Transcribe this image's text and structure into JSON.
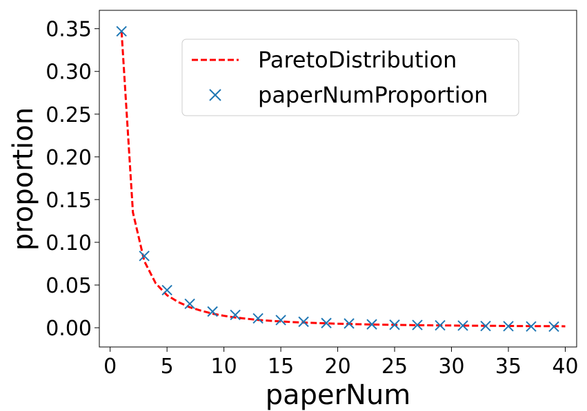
{
  "chart_data": {
    "type": "line",
    "title": "",
    "xlabel": "paperNum",
    "ylabel": "proportion",
    "xlim": [
      -0.95,
      41.0
    ],
    "ylim": [
      -0.0225,
      0.3715
    ],
    "xticks": [
      0,
      5,
      10,
      15,
      20,
      25,
      30,
      35,
      40
    ],
    "xtick_labels": [
      "0",
      "5",
      "10",
      "15",
      "20",
      "25",
      "30",
      "35",
      "40"
    ],
    "yticks": [
      0.0,
      0.05,
      0.1,
      0.15,
      0.2,
      0.25,
      0.3,
      0.35
    ],
    "ytick_labels": [
      "0.00",
      "0.05",
      "0.10",
      "0.15",
      "0.20",
      "0.25",
      "0.30",
      "0.35"
    ],
    "grid": false,
    "legend_position": "upper-right",
    "series": [
      {
        "name": "ParetoDistribution",
        "kind": "line",
        "style": "dashed",
        "color": "#ff0000",
        "x": [
          1,
          2,
          3,
          4,
          5,
          6,
          7,
          8,
          9,
          10,
          11,
          12,
          13,
          14,
          15,
          16,
          17,
          18,
          19,
          20,
          21,
          22,
          23,
          24,
          25,
          26,
          27,
          28,
          29,
          30,
          31,
          32,
          33,
          34,
          35,
          36,
          37,
          38,
          39,
          40
        ],
        "y": [
          0.347,
          0.135,
          0.078,
          0.052,
          0.038,
          0.03,
          0.024,
          0.02,
          0.0165,
          0.014,
          0.012,
          0.0105,
          0.0092,
          0.0082,
          0.0074,
          0.0067,
          0.0061,
          0.0056,
          0.0051,
          0.0047,
          0.0044,
          0.0041,
          0.0038,
          0.0036,
          0.0034,
          0.0032,
          0.003,
          0.0029,
          0.0027,
          0.0026,
          0.0025,
          0.0024,
          0.0023,
          0.0022,
          0.0021,
          0.002,
          0.0019,
          0.0019,
          0.0018,
          0.0017
        ]
      },
      {
        "name": "paperNumProportion",
        "kind": "scatter",
        "marker": "x",
        "color": "#1f77b4",
        "x": [
          1,
          3,
          5,
          7,
          9,
          11,
          13,
          15,
          17,
          19,
          21,
          23,
          25,
          27,
          29,
          31,
          33,
          35,
          37,
          39
        ],
        "y": [
          0.347,
          0.084,
          0.044,
          0.028,
          0.019,
          0.015,
          0.011,
          0.009,
          0.007,
          0.0055,
          0.005,
          0.004,
          0.0035,
          0.0032,
          0.0028,
          0.0025,
          0.002,
          0.0018,
          0.0015,
          0.0013
        ]
      }
    ]
  }
}
